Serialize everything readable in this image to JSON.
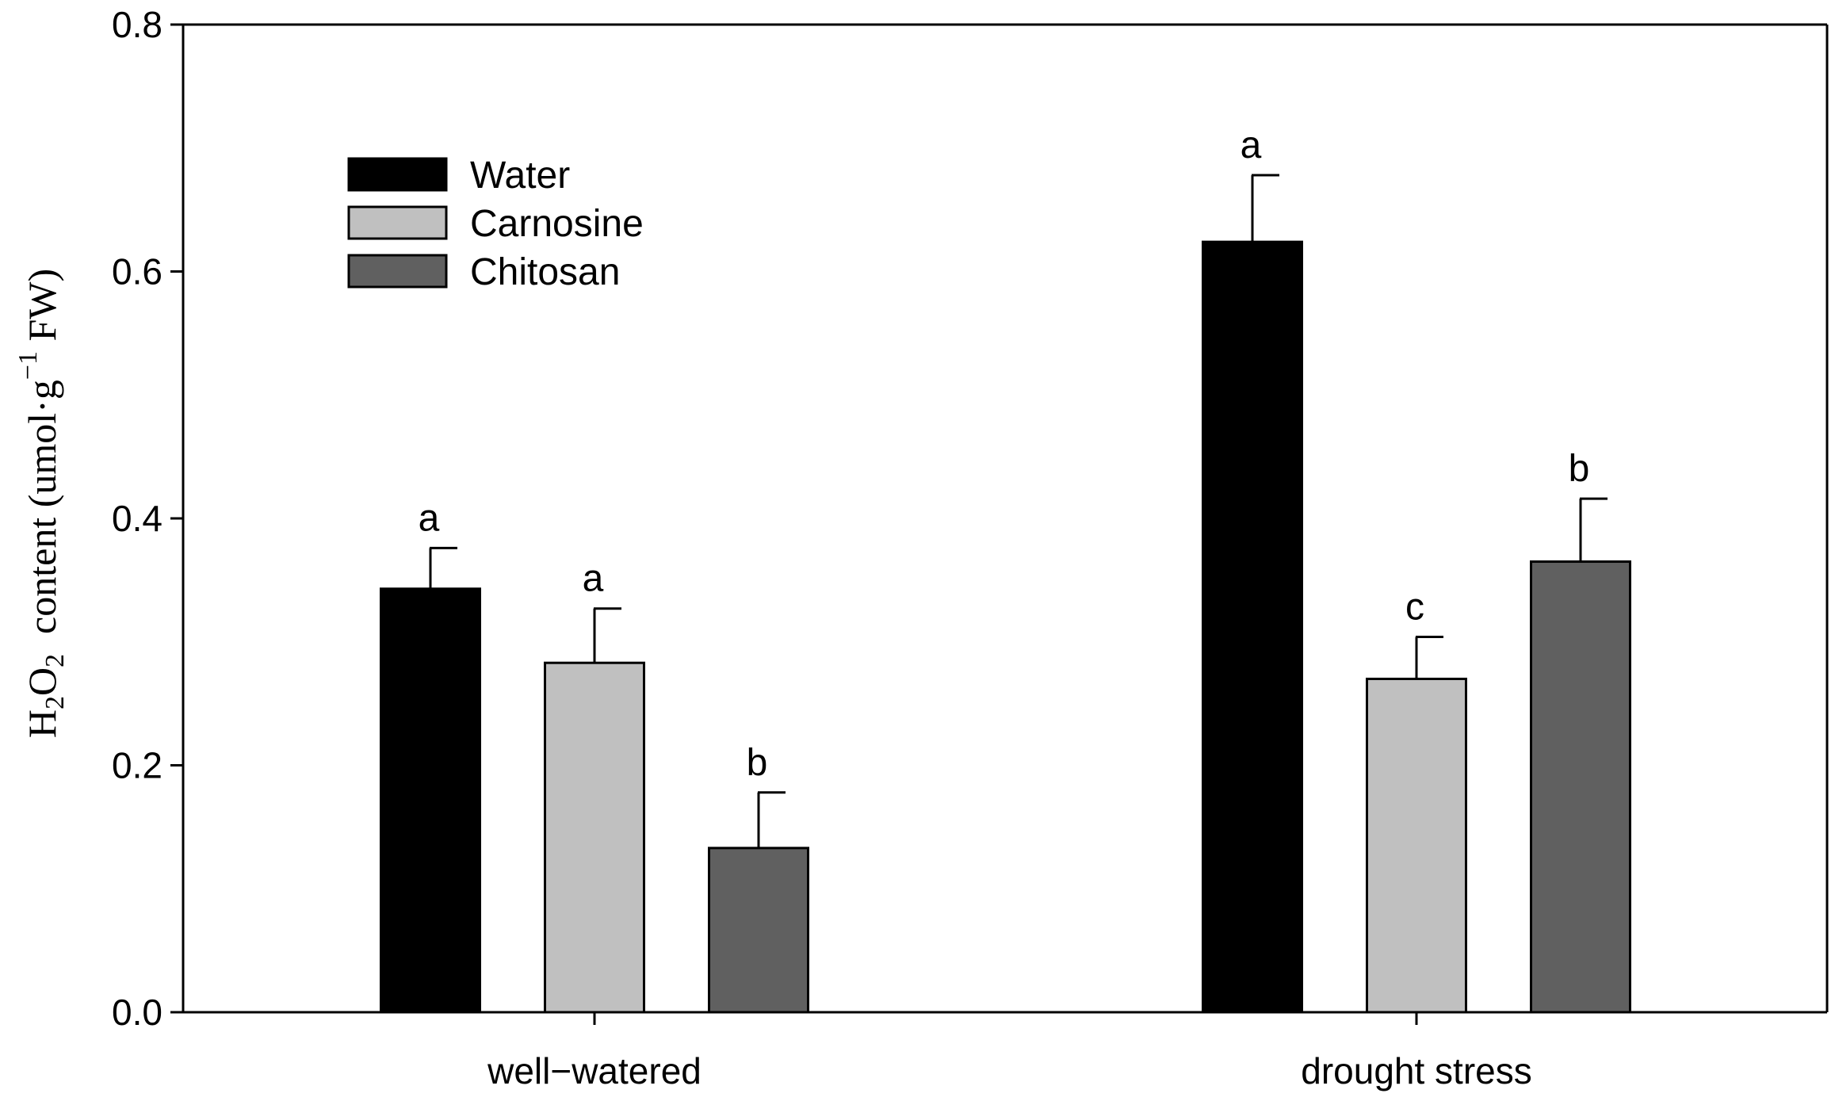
{
  "chart_data": {
    "type": "bar",
    "categories": [
      "well−watered",
      "drought stress"
    ],
    "series": [
      {
        "name": "Water",
        "color": "#000000",
        "values": [
          0.343,
          0.624
        ],
        "errors": [
          0.033,
          0.054
        ],
        "letters": [
          "a",
          "a"
        ]
      },
      {
        "name": "Carnosine",
        "color": "#c0c0c0",
        "values": [
          0.283,
          0.27
        ],
        "errors": [
          0.044,
          0.034
        ],
        "letters": [
          "a",
          "c"
        ]
      },
      {
        "name": "Chitosan",
        "color": "#606060",
        "values": [
          0.133,
          0.365
        ],
        "errors": [
          0.045,
          0.051
        ],
        "letters": [
          "b",
          "b"
        ]
      }
    ],
    "ylim": [
      0.0,
      0.8
    ],
    "yticks": [
      "0.0",
      "0.2",
      "0.4",
      "0.6",
      "0.8"
    ],
    "ylabel": {
      "h": "H",
      "sub2a": "2",
      "o": "O",
      "sub2b": "2",
      "mid": "  content (umol·g",
      "sup": "−1",
      "tail": " FW)"
    },
    "legend_position": "top-left",
    "grid": false
  }
}
